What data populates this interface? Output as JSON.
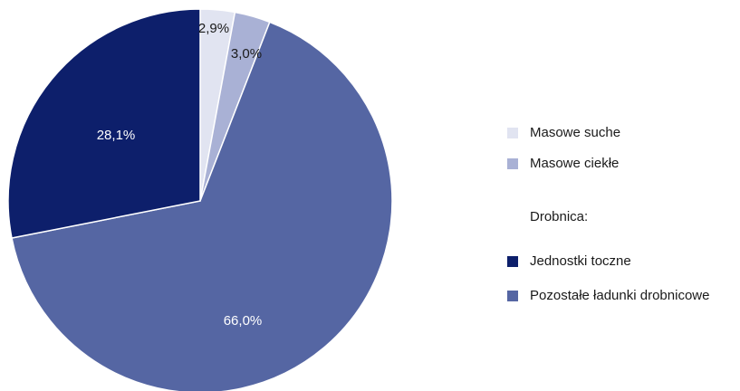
{
  "chart_data": {
    "type": "pie",
    "categories": [
      "Masowe suche",
      "Masowe ciekłe",
      "Pozostałe ładunki drobnicowe",
      "Jednostki toczne"
    ],
    "values": [
      2.9,
      3.0,
      66.0,
      28.1
    ],
    "value_labels": [
      "2,9%",
      "3,0%",
      "66,0%",
      "28,1%"
    ],
    "colors": [
      "#e1e4f1",
      "#a9b1d5",
      "#5566a3",
      "#0d1f6b"
    ],
    "legend_heading": "Drobnica:",
    "legend": "right"
  }
}
